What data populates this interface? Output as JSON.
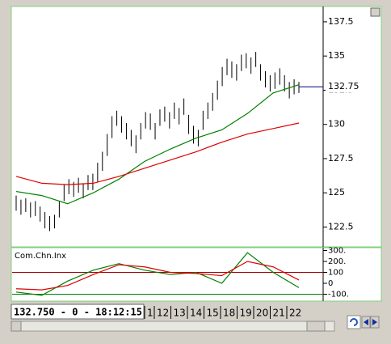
{
  "chart_data": [
    {
      "type": "ohlc",
      "high": [
        124.8,
        124.5,
        124.6,
        124.3,
        124.4,
        124.0,
        123.6,
        123.3,
        123.4,
        124.4,
        125.6,
        126.0,
        125.8,
        126.1,
        125.7,
        126.3,
        126.4,
        127.2,
        128.0,
        129.3,
        130.6,
        131.0,
        130.6,
        130.1,
        129.6,
        129.2,
        130.1,
        130.9,
        130.8,
        130.1,
        131.1,
        131.3,
        130.9,
        131.6,
        131.2,
        131.9,
        130.7,
        129.9,
        129.6,
        131.0,
        131.6,
        132.3,
        133.2,
        134.2,
        134.8,
        134.6,
        134.4,
        135.1,
        135.2,
        134.9,
        135.3,
        134.4,
        133.9,
        133.6,
        133.8,
        134.1,
        133.6,
        133.1,
        133.3,
        133.1
      ],
      "low": [
        123.7,
        123.4,
        123.6,
        123.2,
        123.3,
        122.9,
        122.4,
        122.2,
        122.4,
        123.2,
        124.4,
        124.9,
        124.7,
        125.0,
        124.6,
        125.2,
        125.2,
        125.8,
        126.6,
        127.7,
        129.0,
        129.9,
        129.4,
        128.9,
        128.4,
        127.9,
        128.9,
        129.7,
        129.6,
        128.9,
        129.9,
        130.2,
        129.7,
        130.4,
        130.0,
        130.7,
        129.3,
        128.6,
        128.4,
        129.6,
        130.4,
        131.0,
        131.8,
        132.8,
        133.6,
        133.4,
        133.2,
        133.9,
        134.1,
        133.7,
        134.2,
        133.2,
        132.7,
        132.4,
        132.6,
        132.9,
        132.4,
        131.9,
        132.2,
        132.3
      ],
      "color": "#000000",
      "series": [
        {
          "color": "#008000",
          "values": [
            125.1,
            124.8,
            124.2,
            125.0,
            126.0,
            127.3,
            128.2,
            129.0,
            129.6,
            130.8,
            132.3,
            132.9
          ]
        },
        {
          "color": "#e00000",
          "values": [
            126.2,
            125.7,
            125.6,
            125.7,
            126.2,
            126.8,
            127.4,
            128.0,
            128.7,
            129.3,
            129.7,
            130.1
          ]
        }
      ],
      "last": 132.75,
      "last_color": "#000080",
      "ylim": [
        121.05,
        138.62
      ],
      "yticks": [
        137.5,
        135,
        132.5,
        130,
        127.5,
        125,
        122.5
      ]
    },
    {
      "type": "line",
      "title": "Com.Chn.Inx",
      "series": [
        {
          "color": "#008000",
          "values": [
            -80,
            -110,
            20,
            120,
            180,
            120,
            80,
            100,
            0,
            280,
            100,
            -40
          ]
        },
        {
          "color": "#e00000",
          "values": [
            -50,
            -60,
            -20,
            80,
            170,
            150,
            100,
            90,
            70,
            200,
            150,
            30
          ]
        }
      ],
      "levels": [
        {
          "value": 100,
          "color": "#a00000"
        },
        {
          "value": -100,
          "color": "#008000"
        }
      ],
      "ylim": [
        -163,
        326
      ],
      "yticks": [
        {
          "value": 300,
          "label": "300."
        },
        {
          "value": 200,
          "label": "200."
        },
        100,
        0,
        {
          "value": -100,
          "label": "-100."
        }
      ]
    }
  ],
  "status": {
    "readout": "132.750 - 0 - 18:12:15",
    "dates": [
      "1",
      "12",
      "13",
      "14",
      "15",
      "18",
      "19",
      "20",
      "21",
      "22"
    ]
  }
}
